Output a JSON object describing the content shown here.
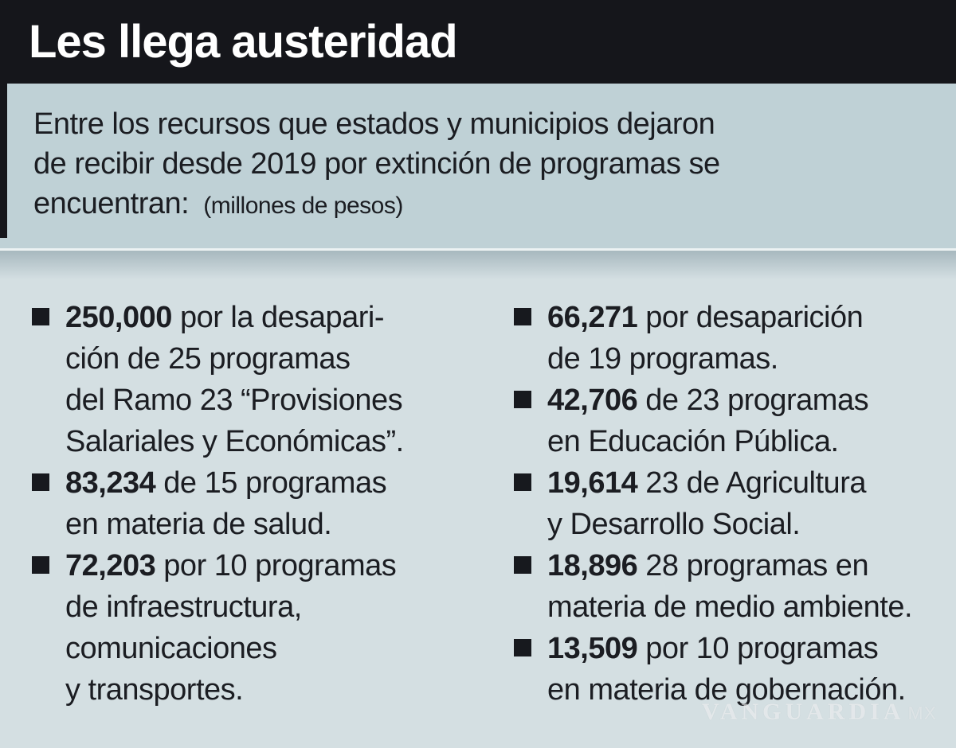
{
  "header": {
    "title": "Les llega austeridad"
  },
  "intro": {
    "text": "Entre los recursos que estados y municipios dejaron\nde recibir desde 2019 por extinción de programas se\nencuentran:",
    "note": "(millones de pesos)",
    "unit": "millones de pesos",
    "year_reference": "2019"
  },
  "list": {
    "left": [
      {
        "value": "250,000",
        "rest": "por la desapari-\nción de 25 programas\ndel Ramo 23 “Provisiones\nSalariales y Económicas”."
      },
      {
        "value": "83,234",
        "rest": "de 15 programas\nen materia de salud."
      },
      {
        "value": "72,203",
        "rest": "por 10 programas\nde infraestructura,\ncomunicaciones\ny transportes."
      }
    ],
    "right": [
      {
        "value": "66,271",
        "rest": "por desaparición\nde 19 programas."
      },
      {
        "value": "42,706",
        "rest": "de 23 programas\nen Educación Pública."
      },
      {
        "value": "19,614",
        "rest": "23 de Agricultura\ny Desarrollo Social."
      },
      {
        "value": "18,896",
        "rest": "28 programas en\nmateria de medio ambiente."
      },
      {
        "value": "13,509",
        "rest": "por 10 programas\nen materia de gobernación."
      }
    ]
  },
  "watermark": {
    "brand": "VANGUARDIA",
    "suffix": "MX"
  },
  "colors": {
    "header_bg": "#15161b",
    "band_bg": "#bfd1d6",
    "main_bg": "#d4dfe2",
    "text": "#1b1d22",
    "title_text": "#ffffff"
  }
}
